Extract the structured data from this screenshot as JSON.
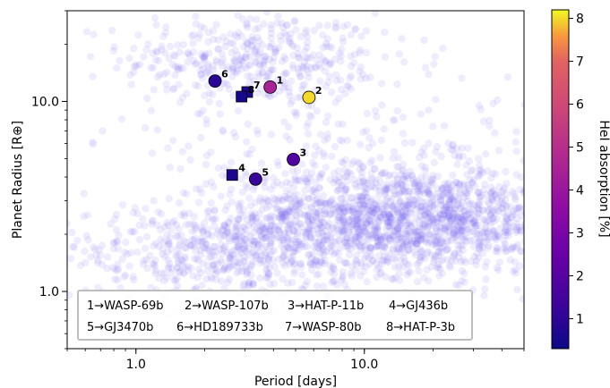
{
  "chart_data": {
    "type": "scatter",
    "xlabel": "Period [days]",
    "ylabel": "Planet Radius [R⊕]",
    "xscale": "log",
    "yscale": "log",
    "xlim": [
      0.5,
      50
    ],
    "ylim": [
      0.5,
      30
    ],
    "grid": false,
    "x_ticks": [
      {
        "value": 1.0,
        "label": "1.0"
      },
      {
        "value": 10.0,
        "label": "10.0"
      }
    ],
    "y_ticks": [
      {
        "value": 1.0,
        "label": "1.0"
      },
      {
        "value": 10.0,
        "label": "10.0"
      }
    ],
    "background_population": {
      "color": "#7b68ee",
      "opacity": 0.12,
      "clusters": [
        {
          "x_center": 3.2,
          "y_center": 17.0,
          "x_spread": 0.28,
          "y_spread": 0.12,
          "count": 380
        },
        {
          "x_center": 15.0,
          "y_center": 2.4,
          "x_spread": 0.38,
          "y_spread": 0.14,
          "count": 1700
        },
        {
          "x_center": 2.5,
          "y_center": 1.6,
          "x_spread": 0.4,
          "y_spread": 0.13,
          "count": 600
        },
        {
          "x_center": 8.0,
          "y_center": 6.0,
          "x_spread": 0.5,
          "y_spread": 0.22,
          "count": 260
        }
      ]
    },
    "series": [
      {
        "id": "1",
        "marker": "circle",
        "x": 3.87,
        "y": 11.9,
        "value": 4.5
      },
      {
        "id": "2",
        "marker": "circle",
        "x": 5.72,
        "y": 10.5,
        "value": 8.0
      },
      {
        "id": "3",
        "marker": "circle",
        "x": 4.89,
        "y": 4.95,
        "value": 1.8
      },
      {
        "id": "4",
        "marker": "square",
        "x": 2.64,
        "y": 4.1,
        "value": 0.6
      },
      {
        "id": "5",
        "marker": "circle",
        "x": 3.34,
        "y": 3.9,
        "value": 1.2
      },
      {
        "id": "6",
        "marker": "circle",
        "x": 2.22,
        "y": 12.8,
        "value": 0.9
      },
      {
        "id": "7",
        "marker": "square",
        "x": 3.07,
        "y": 11.2,
        "value": 0.6
      },
      {
        "id": "8",
        "marker": "square",
        "x": 2.9,
        "y": 10.6,
        "value": 0.5
      }
    ],
    "legend": {
      "placement": "lower-left",
      "rows": [
        [
          "1→WASP-69b",
          "2→WASP-107b",
          "3→HAT-P-11b",
          "4→GJ436b"
        ],
        [
          "5→GJ3470b",
          "6→HD189733b",
          "7→WASP-80b",
          "8→HAT-P-3b"
        ]
      ]
    },
    "colorbar": {
      "label": "HeI absorption [%]",
      "colormap": "plasma",
      "range": [
        0.3,
        8.2
      ],
      "ticks": [
        1,
        2,
        3,
        4,
        5,
        6,
        7,
        8
      ]
    }
  }
}
